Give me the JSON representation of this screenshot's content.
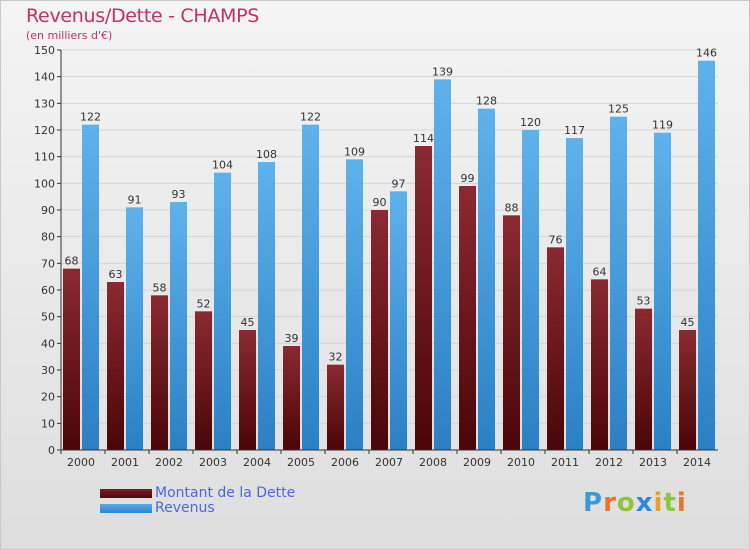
{
  "header": {
    "title": "Revenus/Dette - CHAMPS",
    "subtitle": "(en milliers d'€)"
  },
  "legend": {
    "debt_label": "Montant de la Dette",
    "revenue_label": "Revenus"
  },
  "logo": {
    "letters": [
      "P",
      "r",
      "o",
      "x",
      "i",
      "t",
      "i"
    ],
    "colors": [
      "#3a9ad8",
      "#e8732a",
      "#8cc63f",
      "#2a8ad8",
      "#e8a02a",
      "#8cc63f",
      "#e8732a"
    ]
  },
  "colors": {
    "debt": "#7a1f24",
    "debt_dark": "#4a0a0e",
    "revenue": "#55a8e6",
    "revenue_dark": "#2f86cc",
    "grid": "#d4d4d4",
    "axis": "#333333",
    "text": "#333333"
  },
  "chart_data": {
    "type": "bar",
    "title": "Revenus/Dette - CHAMPS",
    "subtitle": "(en milliers d'€)",
    "xlabel": "",
    "ylabel": "",
    "categories": [
      "2000",
      "2001",
      "2002",
      "2003",
      "2004",
      "2005",
      "2006",
      "2007",
      "2008",
      "2009",
      "2010",
      "2011",
      "2012",
      "2013",
      "2014"
    ],
    "series": [
      {
        "name": "Montant de la Dette",
        "values": [
          68,
          63,
          58,
          52,
          45,
          39,
          32,
          90,
          114,
          99,
          88,
          76,
          64,
          53,
          45
        ]
      },
      {
        "name": "Revenus",
        "values": [
          122,
          91,
          93,
          104,
          108,
          122,
          109,
          97,
          139,
          128,
          120,
          117,
          125,
          119,
          146
        ]
      }
    ],
    "ylim": [
      0,
      150
    ],
    "yticks": [
      0,
      10,
      20,
      30,
      40,
      50,
      60,
      70,
      80,
      90,
      100,
      110,
      120,
      130,
      140,
      150
    ],
    "grid": true,
    "legend_position": "bottom-left"
  }
}
